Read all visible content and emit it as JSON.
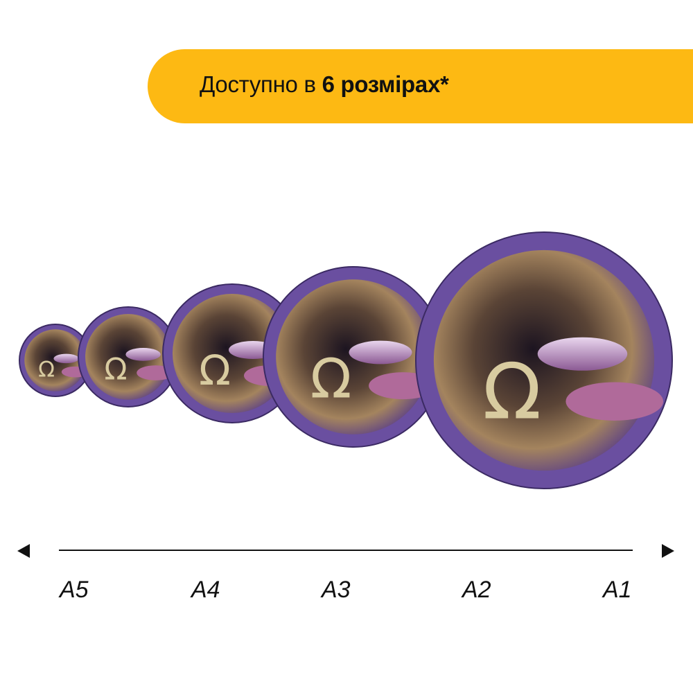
{
  "banner": {
    "text_prefix": "Доступно в ",
    "text_bold": "6 розмірах*",
    "color": "#fdb913"
  },
  "puzzles": {
    "icon": "libra-zodiac-puzzle",
    "rim_color": "#6a4fa0",
    "count": 5
  },
  "scale": {
    "labels": [
      "A5",
      "A4",
      "A3",
      "A2",
      "A1"
    ]
  }
}
